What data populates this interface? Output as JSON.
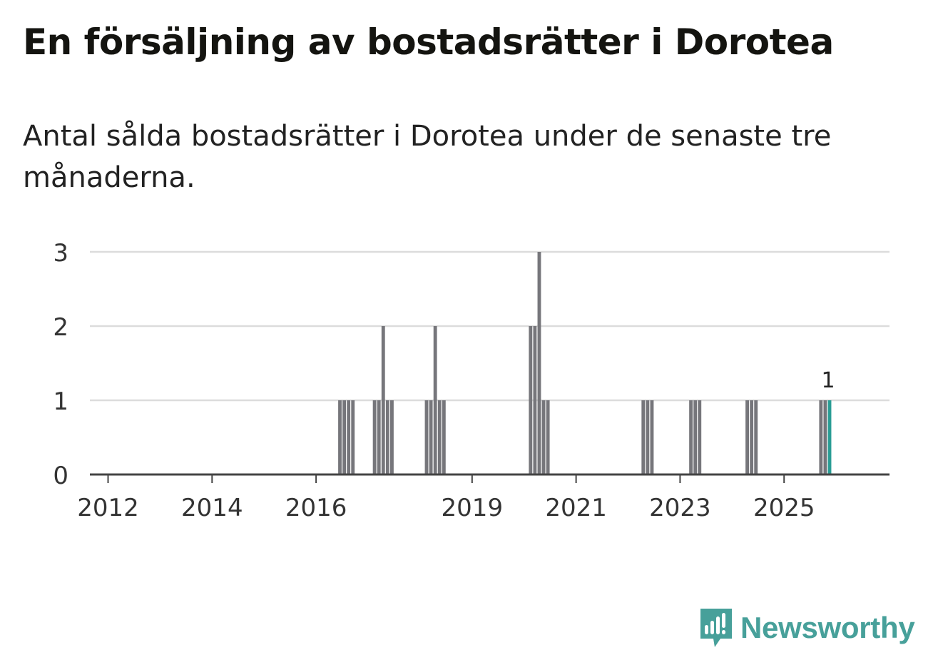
{
  "title": "En försäljning av bostadsrätter i Dorotea",
  "subtitle": "Antal sålda bostadsrätter i Dorotea under de senaste tre månaderna.",
  "brand": {
    "name": "Newsworthy",
    "icon": "newsworthy-logo-icon"
  },
  "colors": {
    "bar": "#76767b",
    "highlight": "#2a9d95",
    "grid": "#dcdcdc",
    "axis": "#444444",
    "text": "#333333",
    "brand": "#47a09a"
  },
  "chart_data": {
    "type": "bar",
    "title": "En försäljning av bostadsrätter i Dorotea",
    "xlabel": "",
    "ylabel": "",
    "ylim": [
      0,
      3
    ],
    "yticks": [
      0,
      1,
      2,
      3
    ],
    "xticks": [
      "2012",
      "2014",
      "2016",
      "2019",
      "2021",
      "2023",
      "2025"
    ],
    "grid": true,
    "legend": "none",
    "x_unit": "month",
    "series": [
      {
        "values": [
          {
            "x": "2016-06",
            "y": 1
          },
          {
            "x": "2016-07",
            "y": 1
          },
          {
            "x": "2016-08",
            "y": 1
          },
          {
            "x": "2016-09",
            "y": 1
          },
          {
            "x": "2017-02",
            "y": 1
          },
          {
            "x": "2017-03",
            "y": 1
          },
          {
            "x": "2017-04",
            "y": 2
          },
          {
            "x": "2017-05",
            "y": 1
          },
          {
            "x": "2017-06",
            "y": 1
          },
          {
            "x": "2018-02",
            "y": 1
          },
          {
            "x": "2018-03",
            "y": 1
          },
          {
            "x": "2018-04",
            "y": 2
          },
          {
            "x": "2018-05",
            "y": 1
          },
          {
            "x": "2018-06",
            "y": 1
          },
          {
            "x": "2020-02",
            "y": 2
          },
          {
            "x": "2020-03",
            "y": 2
          },
          {
            "x": "2020-04",
            "y": 3
          },
          {
            "x": "2020-05",
            "y": 1
          },
          {
            "x": "2020-06",
            "y": 1
          },
          {
            "x": "2022-04",
            "y": 1
          },
          {
            "x": "2022-05",
            "y": 1
          },
          {
            "x": "2022-06",
            "y": 1
          },
          {
            "x": "2023-03",
            "y": 1
          },
          {
            "x": "2023-04",
            "y": 1
          },
          {
            "x": "2023-05",
            "y": 1
          },
          {
            "x": "2024-04",
            "y": 1
          },
          {
            "x": "2024-05",
            "y": 1
          },
          {
            "x": "2024-06",
            "y": 1
          },
          {
            "x": "2025-09",
            "y": 1
          },
          {
            "x": "2025-10",
            "y": 1
          },
          {
            "x": "2025-11",
            "y": 1,
            "highlight": true
          }
        ]
      }
    ],
    "annotations": [
      {
        "x": "2025-11",
        "text": "1"
      }
    ]
  }
}
